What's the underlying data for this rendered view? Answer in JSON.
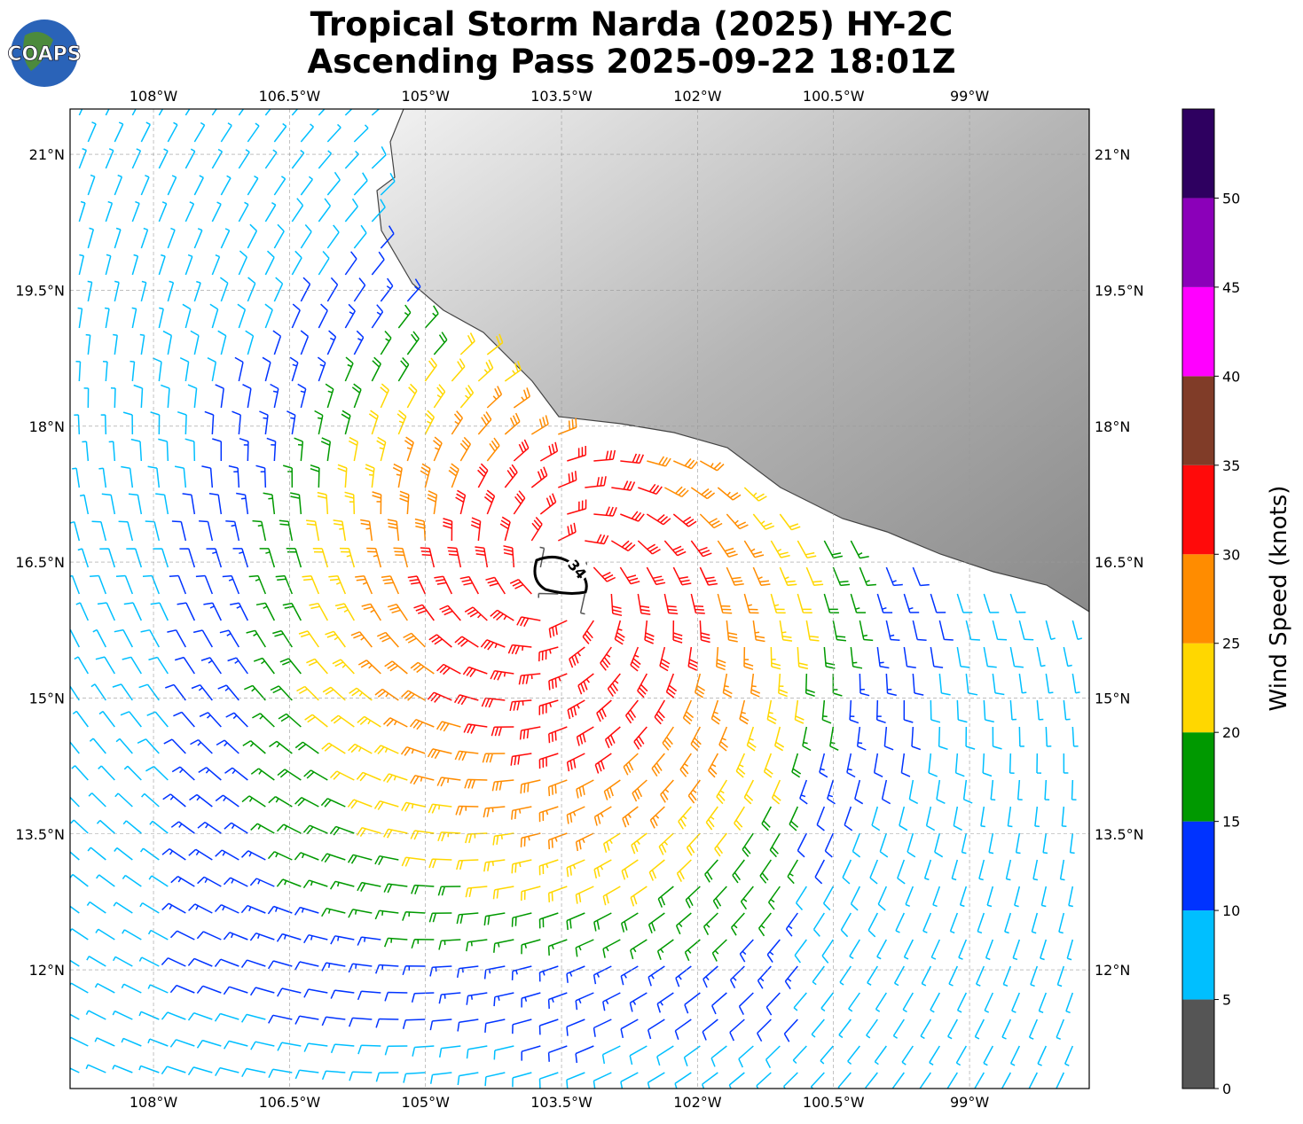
{
  "logo": "COAPS",
  "chart_data": {
    "type": "wind-barb-map",
    "title": [
      "Tropical Storm Narda (2025) HY-2C",
      "Ascending Pass 2025-09-22 18:01Z"
    ],
    "xlim": [
      -108.92,
      -97.68
    ],
    "ylim": [
      10.69,
      21.5
    ],
    "xticks": [
      {
        "value": -108,
        "label": "108°W"
      },
      {
        "value": -106.5,
        "label": "106.5°W"
      },
      {
        "value": -105,
        "label": "105°W"
      },
      {
        "value": -103.5,
        "label": "103.5°W"
      },
      {
        "value": -102,
        "label": "102°W"
      },
      {
        "value": -100.5,
        "label": "100.5°W"
      },
      {
        "value": -99,
        "label": "99°W"
      }
    ],
    "yticks": [
      {
        "value": 21,
        "label": "21°N"
      },
      {
        "value": 19.5,
        "label": "19.5°N"
      },
      {
        "value": 18,
        "label": "18°N"
      },
      {
        "value": 16.5,
        "label": "16.5°N"
      },
      {
        "value": 15,
        "label": "15°N"
      },
      {
        "value": 13.5,
        "label": "13.5°N"
      },
      {
        "value": 12,
        "label": "12°N"
      }
    ],
    "grid": true,
    "contour_label": "34",
    "colorbar": {
      "label": "Wind Speed (knots)",
      "lim": [
        0,
        55
      ],
      "ticks": [
        0,
        5,
        10,
        15,
        20,
        25,
        30,
        35,
        40,
        45,
        50
      ],
      "colors": [
        "#555555",
        "#00bfff",
        "#0033ff",
        "#009900",
        "#ffd700",
        "#ff8c00",
        "#ff0a0a",
        "#803c28",
        "#ff00ff",
        "#8b00b9",
        "#2e0060"
      ]
    }
  }
}
